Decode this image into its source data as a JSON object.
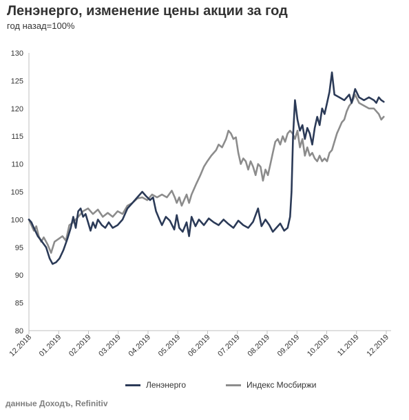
{
  "title": "Ленэнерго, изменение цены акции за год",
  "subtitle": "год назад=100%",
  "source": "данные Доходъ, Refinitiv",
  "colors": {
    "lenenergo": "#2b3a57",
    "moex": "#8c8c8c",
    "axis": "#bfbfbf",
    "text": "#333333"
  },
  "chart_data": {
    "type": "line",
    "xlabel": "",
    "ylabel": "",
    "ylim": [
      80,
      130
    ],
    "yticks": [
      80,
      85,
      90,
      95,
      100,
      105,
      110,
      115,
      120,
      125,
      130
    ],
    "grid": false,
    "legend": "bottom",
    "x_tick_labels": [
      "12.2018",
      "01.2019",
      "02.2019",
      "03.2019",
      "04.2019",
      "05.2019",
      "06.2019",
      "07.2019",
      "08.2019",
      "09.2019",
      "10.2019",
      "11.2019",
      "12.2019"
    ],
    "series": [
      {
        "name": "Ленэнерго",
        "points": [
          [
            0.0,
            100.0
          ],
          [
            0.05,
            99.5
          ],
          [
            0.1,
            98.5
          ],
          [
            0.18,
            97.0
          ],
          [
            0.25,
            96.2
          ],
          [
            0.35,
            95.0
          ],
          [
            0.42,
            93.0
          ],
          [
            0.48,
            92.0
          ],
          [
            0.55,
            92.3
          ],
          [
            0.62,
            93.0
          ],
          [
            0.7,
            94.5
          ],
          [
            0.78,
            96.5
          ],
          [
            0.85,
            98.5
          ],
          [
            0.9,
            100.5
          ],
          [
            0.95,
            98.5
          ],
          [
            1.0,
            101.5
          ],
          [
            1.05,
            102.0
          ],
          [
            1.1,
            100.5
          ],
          [
            1.15,
            101.0
          ],
          [
            1.2,
            99.5
          ],
          [
            1.25,
            98.0
          ],
          [
            1.3,
            99.5
          ],
          [
            1.35,
            98.5
          ],
          [
            1.4,
            100.0
          ],
          [
            1.48,
            99.0
          ],
          [
            1.55,
            98.5
          ],
          [
            1.62,
            99.5
          ],
          [
            1.7,
            98.5
          ],
          [
            1.8,
            99.0
          ],
          [
            1.9,
            100.0
          ],
          [
            2.0,
            102.0
          ],
          [
            2.1,
            103.0
          ],
          [
            2.2,
            104.0
          ],
          [
            2.3,
            105.0
          ],
          [
            2.38,
            104.2
          ],
          [
            2.46,
            103.5
          ],
          [
            2.52,
            104.0
          ],
          [
            2.58,
            101.5
          ],
          [
            2.65,
            100.0
          ],
          [
            2.7,
            99.0
          ],
          [
            2.78,
            100.5
          ],
          [
            2.86,
            99.8
          ],
          [
            2.95,
            98.2
          ],
          [
            3.0,
            100.8
          ],
          [
            3.05,
            98.5
          ],
          [
            3.12,
            97.8
          ],
          [
            3.2,
            99.5
          ],
          [
            3.25,
            97.0
          ],
          [
            3.3,
            100.5
          ],
          [
            3.38,
            98.8
          ],
          [
            3.45,
            100.0
          ],
          [
            3.55,
            99.0
          ],
          [
            3.65,
            100.2
          ],
          [
            3.75,
            99.5
          ],
          [
            3.85,
            99.0
          ],
          [
            3.95,
            100.0
          ],
          [
            4.05,
            99.2
          ],
          [
            4.15,
            98.5
          ],
          [
            4.25,
            99.8
          ],
          [
            4.35,
            99.0
          ],
          [
            4.45,
            98.5
          ],
          [
            4.55,
            99.6
          ],
          [
            4.65,
            102.0
          ],
          [
            4.72,
            98.8
          ],
          [
            4.8,
            100.0
          ],
          [
            4.88,
            99.0
          ],
          [
            4.95,
            97.8
          ],
          [
            5.02,
            98.5
          ],
          [
            5.1,
            99.3
          ],
          [
            5.18,
            98.0
          ],
          [
            5.25,
            98.5
          ],
          [
            5.3,
            100.5
          ],
          [
            5.33,
            105.0
          ],
          [
            5.36,
            115.0
          ],
          [
            5.4,
            121.5
          ],
          [
            5.45,
            118.0
          ],
          [
            5.5,
            116.0
          ],
          [
            5.55,
            117.0
          ],
          [
            5.6,
            114.5
          ],
          [
            5.65,
            116.5
          ],
          [
            5.7,
            115.5
          ],
          [
            5.75,
            113.5
          ],
          [
            5.8,
            116.5
          ],
          [
            5.85,
            118.5
          ],
          [
            5.9,
            117.0
          ],
          [
            5.95,
            120.0
          ],
          [
            6.0,
            119.0
          ],
          [
            6.05,
            121.0
          ],
          [
            6.1,
            123.0
          ],
          [
            6.15,
            126.5
          ],
          [
            6.2,
            122.5
          ],
          [
            6.3,
            122.0
          ],
          [
            6.4,
            121.5
          ],
          [
            6.5,
            122.5
          ],
          [
            6.55,
            121.0
          ],
          [
            6.62,
            123.5
          ],
          [
            6.7,
            122.0
          ],
          [
            6.8,
            121.5
          ],
          [
            6.9,
            122.0
          ],
          [
            7.0,
            121.5
          ],
          [
            7.05,
            121.0
          ],
          [
            7.1,
            122.0
          ],
          [
            7.15,
            121.5
          ],
          [
            7.2,
            121.2
          ]
        ]
      },
      {
        "name": "Индекс Мосбиржи",
        "points": [
          [
            0.0,
            100.0
          ],
          [
            0.05,
            99.0
          ],
          [
            0.1,
            98.0
          ],
          [
            0.15,
            98.8
          ],
          [
            0.2,
            97.0
          ],
          [
            0.25,
            96.0
          ],
          [
            0.3,
            96.8
          ],
          [
            0.38,
            95.5
          ],
          [
            0.45,
            94.0
          ],
          [
            0.52,
            96.0
          ],
          [
            0.6,
            96.5
          ],
          [
            0.68,
            97.0
          ],
          [
            0.75,
            96.2
          ],
          [
            0.82,
            99.0
          ],
          [
            0.9,
            99.5
          ],
          [
            1.0,
            100.5
          ],
          [
            1.1,
            101.5
          ],
          [
            1.2,
            102.0
          ],
          [
            1.3,
            101.0
          ],
          [
            1.4,
            101.8
          ],
          [
            1.5,
            100.5
          ],
          [
            1.6,
            101.2
          ],
          [
            1.7,
            100.5
          ],
          [
            1.8,
            101.5
          ],
          [
            1.9,
            101.0
          ],
          [
            2.0,
            102.5
          ],
          [
            2.1,
            103.0
          ],
          [
            2.2,
            103.8
          ],
          [
            2.3,
            104.0
          ],
          [
            2.4,
            103.5
          ],
          [
            2.5,
            104.5
          ],
          [
            2.6,
            104.0
          ],
          [
            2.7,
            104.5
          ],
          [
            2.8,
            104.0
          ],
          [
            2.9,
            105.2
          ],
          [
            2.96,
            104.0
          ],
          [
            3.0,
            103.0
          ],
          [
            3.05,
            104.0
          ],
          [
            3.1,
            102.5
          ],
          [
            3.15,
            103.5
          ],
          [
            3.2,
            104.5
          ],
          [
            3.25,
            103.0
          ],
          [
            3.3,
            104.5
          ],
          [
            3.4,
            106.5
          ],
          [
            3.48,
            108.0
          ],
          [
            3.55,
            109.5
          ],
          [
            3.62,
            110.5
          ],
          [
            3.7,
            111.5
          ],
          [
            3.8,
            112.5
          ],
          [
            3.85,
            113.5
          ],
          [
            3.92,
            113.0
          ],
          [
            4.0,
            114.5
          ],
          [
            4.05,
            116.0
          ],
          [
            4.1,
            115.5
          ],
          [
            4.15,
            114.5
          ],
          [
            4.2,
            114.8
          ],
          [
            4.25,
            112.0
          ],
          [
            4.3,
            110.0
          ],
          [
            4.35,
            111.0
          ],
          [
            4.4,
            110.5
          ],
          [
            4.45,
            109.0
          ],
          [
            4.5,
            110.5
          ],
          [
            4.55,
            109.5
          ],
          [
            4.6,
            108.0
          ],
          [
            4.65,
            110.0
          ],
          [
            4.7,
            109.5
          ],
          [
            4.75,
            107.0
          ],
          [
            4.8,
            109.0
          ],
          [
            4.85,
            108.0
          ],
          [
            4.9,
            110.0
          ],
          [
            4.95,
            112.0
          ],
          [
            5.0,
            114.0
          ],
          [
            5.05,
            114.5
          ],
          [
            5.1,
            113.5
          ],
          [
            5.15,
            115.0
          ],
          [
            5.2,
            114.0
          ],
          [
            5.25,
            115.5
          ],
          [
            5.3,
            116.0
          ],
          [
            5.35,
            115.5
          ],
          [
            5.4,
            114.5
          ],
          [
            5.45,
            116.0
          ],
          [
            5.5,
            113.0
          ],
          [
            5.55,
            114.5
          ],
          [
            5.6,
            111.5
          ],
          [
            5.65,
            113.0
          ],
          [
            5.7,
            111.5
          ],
          [
            5.75,
            112.0
          ],
          [
            5.8,
            111.0
          ],
          [
            5.85,
            110.5
          ],
          [
            5.9,
            111.5
          ],
          [
            5.95,
            110.5
          ],
          [
            6.0,
            111.0
          ],
          [
            6.05,
            110.5
          ],
          [
            6.1,
            112.0
          ],
          [
            6.15,
            112.5
          ],
          [
            6.2,
            114.0
          ],
          [
            6.25,
            115.5
          ],
          [
            6.3,
            116.5
          ],
          [
            6.35,
            117.5
          ],
          [
            6.4,
            118.0
          ],
          [
            6.45,
            119.5
          ],
          [
            6.5,
            120.5
          ],
          [
            6.55,
            121.0
          ],
          [
            6.62,
            122.5
          ],
          [
            6.7,
            121.0
          ],
          [
            6.8,
            120.5
          ],
          [
            6.9,
            120.0
          ],
          [
            7.0,
            120.0
          ],
          [
            7.05,
            119.5
          ],
          [
            7.1,
            119.0
          ],
          [
            7.15,
            118.0
          ],
          [
            7.2,
            118.5
          ]
        ]
      }
    ]
  }
}
